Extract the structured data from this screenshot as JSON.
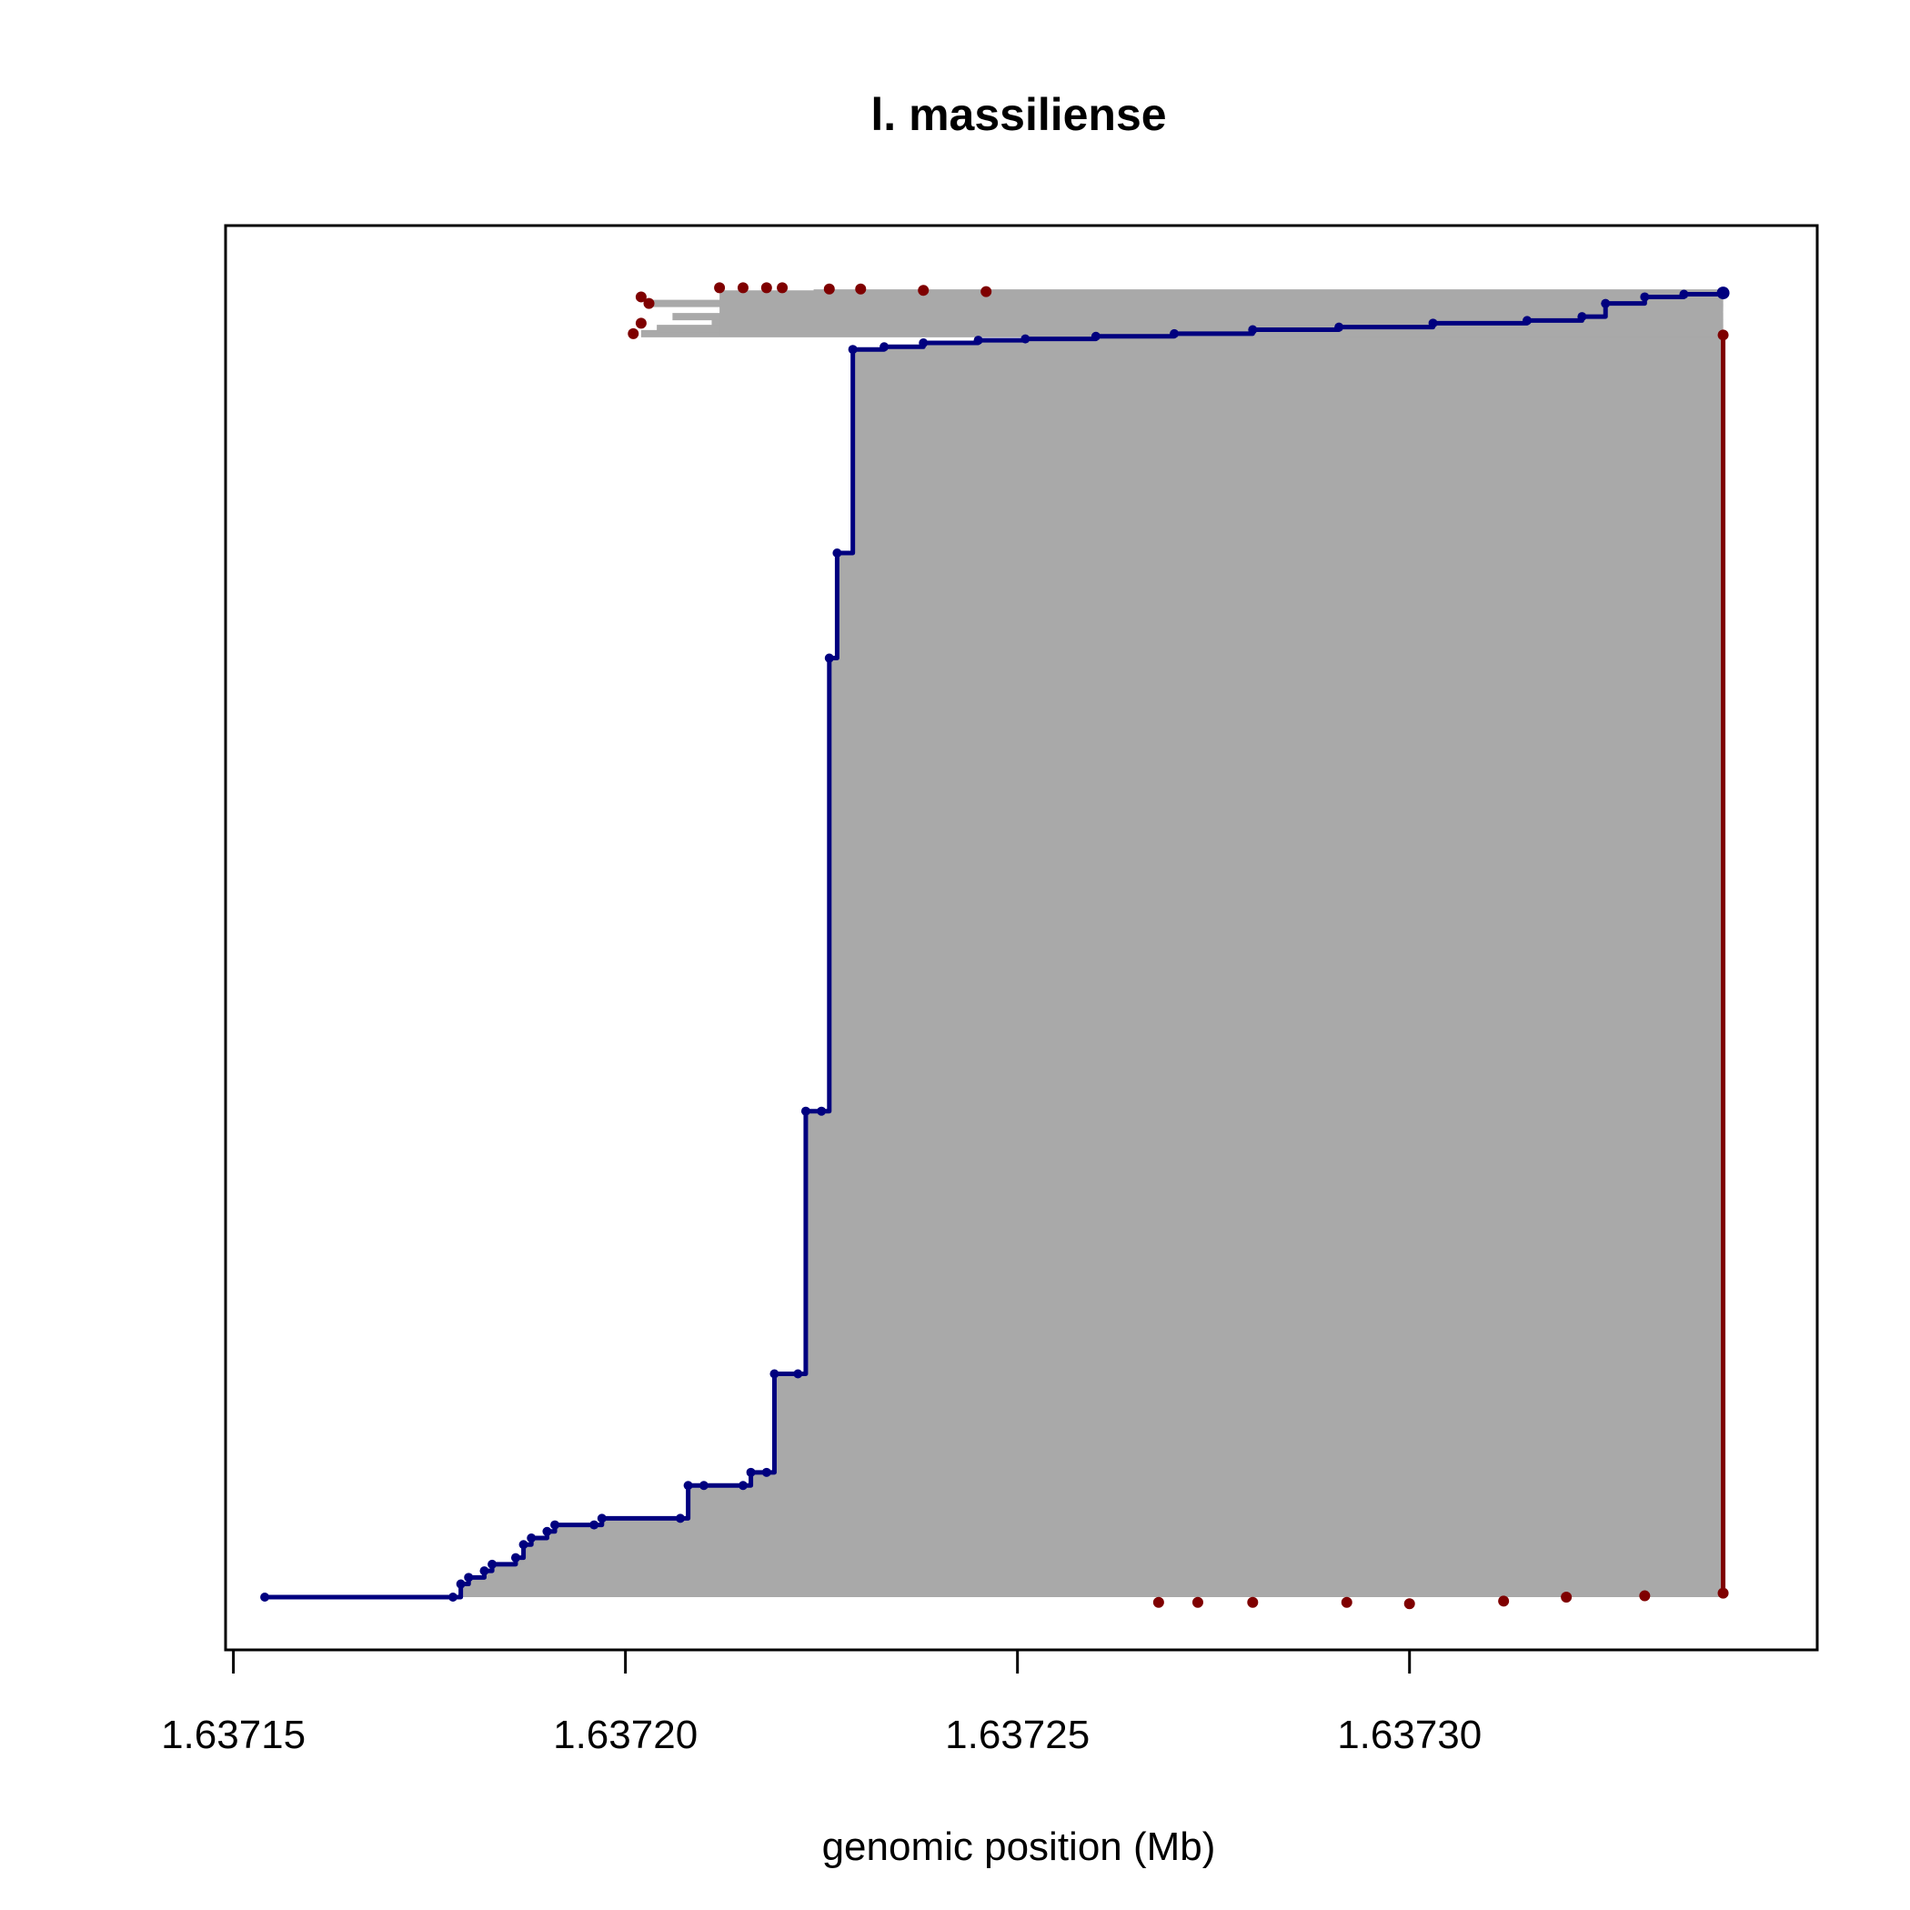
{
  "chart_data": {
    "type": "line",
    "title": "l. massiliense",
    "xlabel": "genomic position (Mb)",
    "ylabel": "",
    "xlim": [
      1.637149,
      1.637352
    ],
    "ylim": [
      0,
      1
    ],
    "x_ticks": [
      1.63715,
      1.6372,
      1.63725,
      1.6373
    ],
    "x_tick_labels": [
      "1.63715",
      "1.63720",
      "1.63725",
      "1.63730"
    ],
    "y_axis_shown": false,
    "grid": false,
    "legend": "none",
    "colors": {
      "forward_reads": "#00007f",
      "reverse_reads": "#7f0000",
      "read_spans": "#a9a9a9"
    },
    "series": [
      {
        "color": "#00007f",
        "points": [
          [
            1.637154,
            0.0
          ],
          [
            1.637178,
            0.0
          ],
          [
            1.637179,
            0.01
          ],
          [
            1.63718,
            0.015
          ],
          [
            1.637182,
            0.02
          ],
          [
            1.637183,
            0.025
          ],
          [
            1.637186,
            0.03
          ],
          [
            1.637187,
            0.04
          ],
          [
            1.637188,
            0.045
          ],
          [
            1.63719,
            0.05
          ],
          [
            1.637191,
            0.055
          ],
          [
            1.637196,
            0.055
          ],
          [
            1.637197,
            0.06
          ],
          [
            1.637207,
            0.06
          ],
          [
            1.637208,
            0.085
          ],
          [
            1.63721,
            0.085
          ],
          [
            1.637215,
            0.085
          ],
          [
            1.637216,
            0.095
          ],
          [
            1.637218,
            0.095
          ],
          [
            1.637219,
            0.17
          ],
          [
            1.637222,
            0.17
          ],
          [
            1.637223,
            0.37
          ],
          [
            1.637225,
            0.37
          ],
          [
            1.637226,
            0.715
          ],
          [
            1.637227,
            0.795
          ],
          [
            1.637229,
            0.95
          ],
          [
            1.637233,
            0.952
          ],
          [
            1.637238,
            0.955
          ],
          [
            1.637245,
            0.957
          ],
          [
            1.637251,
            0.958
          ],
          [
            1.63726,
            0.96
          ],
          [
            1.63727,
            0.962
          ],
          [
            1.63728,
            0.965
          ],
          [
            1.637291,
            0.967
          ],
          [
            1.637303,
            0.97
          ],
          [
            1.637315,
            0.972
          ],
          [
            1.637322,
            0.975
          ],
          [
            1.637325,
            0.985
          ],
          [
            1.63733,
            0.99
          ],
          [
            1.637335,
            0.992
          ],
          [
            1.63734,
            0.993
          ]
        ]
      },
      {
        "color": "#7f0000",
        "points": [
          [
            1.63734,
            0.961
          ],
          [
            1.63734,
            0.003
          ],
          [
            1.63733,
            0.001
          ],
          [
            1.63732,
            0.0
          ],
          [
            1.637312,
            -0.003
          ],
          [
            1.6373,
            -0.005
          ],
          [
            1.637292,
            -0.004
          ],
          [
            1.63728,
            -0.004
          ],
          [
            1.637273,
            -0.004
          ],
          [
            1.637268,
            -0.004
          ]
        ]
      }
    ]
  }
}
